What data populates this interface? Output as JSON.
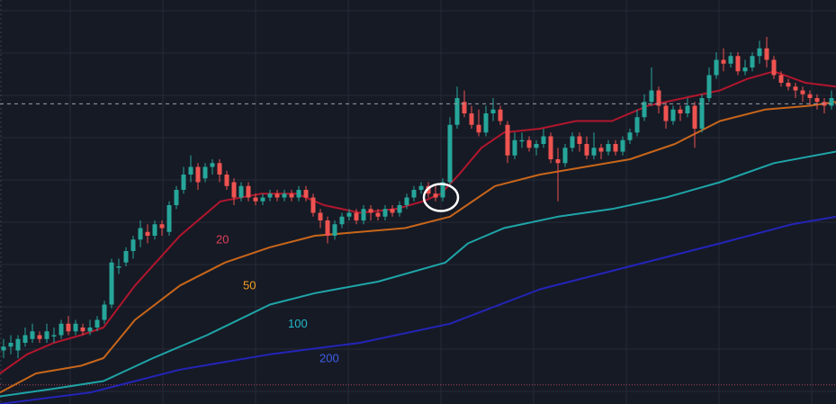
{
  "chart_data": {
    "type": "line",
    "title": "",
    "xlabel": "",
    "ylabel": "",
    "ylim": [
      0,
      100
    ],
    "grid": true,
    "reference_line_y": 78.5,
    "bottom_line_y": 5,
    "colors": {
      "background": "#161a25",
      "grid": "#252a36",
      "bull": "#26a69a",
      "bear": "#ef5350",
      "reference_line": "#9aa0aa",
      "bottom_line": "#b2475a",
      "annotation": "#ffffff"
    },
    "annotation": {
      "shape": "circle",
      "x": 490,
      "y": 54
    },
    "ma_series": [
      {
        "name": "20",
        "color": "#b2162d",
        "label_color": "#e0415a",
        "label_x": 240,
        "label_y": 42,
        "points": [
          [
            0,
            8
          ],
          [
            30,
            13
          ],
          [
            60,
            16
          ],
          [
            90,
            18
          ],
          [
            115,
            20
          ],
          [
            150,
            31
          ],
          [
            200,
            44
          ],
          [
            245,
            53
          ],
          [
            290,
            55
          ],
          [
            330,
            55
          ],
          [
            360,
            52
          ],
          [
            400,
            50
          ],
          [
            440,
            51
          ],
          [
            470,
            53
          ],
          [
            490,
            55
          ],
          [
            510,
            60
          ],
          [
            535,
            67
          ],
          [
            560,
            71
          ],
          [
            600,
            72
          ],
          [
            640,
            74
          ],
          [
            680,
            74
          ],
          [
            720,
            78
          ],
          [
            760,
            80
          ],
          [
            800,
            82
          ],
          [
            830,
            85
          ],
          [
            860,
            87
          ],
          [
            895,
            84
          ],
          [
            929,
            83
          ]
        ]
      },
      {
        "name": "50",
        "color": "#c8661a",
        "label_color": "#f4a020",
        "label_x": 270,
        "label_y": 30,
        "points": [
          [
            0,
            3
          ],
          [
            40,
            8
          ],
          [
            90,
            10
          ],
          [
            115,
            12
          ],
          [
            150,
            22
          ],
          [
            200,
            31
          ],
          [
            250,
            37
          ],
          [
            300,
            41
          ],
          [
            350,
            44
          ],
          [
            400,
            45
          ],
          [
            450,
            46
          ],
          [
            500,
            49
          ],
          [
            550,
            57
          ],
          [
            600,
            60
          ],
          [
            650,
            62
          ],
          [
            700,
            64
          ],
          [
            750,
            68
          ],
          [
            800,
            74
          ],
          [
            850,
            77
          ],
          [
            900,
            78
          ],
          [
            929,
            79
          ]
        ]
      },
      {
        "name": "100",
        "color": "#1ea5a8",
        "label_color": "#22b8c8",
        "label_x": 320,
        "label_y": 20,
        "points": [
          [
            0,
            2
          ],
          [
            60,
            4
          ],
          [
            115,
            6
          ],
          [
            170,
            12
          ],
          [
            230,
            18
          ],
          [
            300,
            26
          ],
          [
            350,
            29
          ],
          [
            420,
            32
          ],
          [
            495,
            37
          ],
          [
            520,
            42
          ],
          [
            560,
            46
          ],
          [
            620,
            49
          ],
          [
            680,
            51
          ],
          [
            740,
            54
          ],
          [
            800,
            58
          ],
          [
            860,
            63
          ],
          [
            929,
            66
          ]
        ]
      },
      {
        "name": "200",
        "color": "#2424b8",
        "label_color": "#3d5ee8",
        "label_x": 355,
        "label_y": 11,
        "points": [
          [
            0,
            0
          ],
          [
            100,
            3
          ],
          [
            200,
            9
          ],
          [
            300,
            13
          ],
          [
            400,
            16
          ],
          [
            500,
            21
          ],
          [
            600,
            30
          ],
          [
            700,
            36
          ],
          [
            800,
            42
          ],
          [
            880,
            47
          ],
          [
            929,
            49
          ]
        ]
      }
    ],
    "candles": [
      [
        4,
        14,
        15,
        12,
        17
      ],
      [
        12,
        15,
        16,
        13,
        18
      ],
      [
        20,
        14,
        17,
        12,
        18
      ],
      [
        28,
        16,
        18,
        15,
        20
      ],
      [
        36,
        17,
        19,
        16,
        21
      ],
      [
        44,
        18,
        17,
        16,
        19
      ],
      [
        52,
        17,
        19,
        16,
        21
      ],
      [
        60,
        18,
        18,
        16,
        20
      ],
      [
        68,
        18,
        21,
        17,
        22
      ],
      [
        76,
        21,
        19,
        18,
        23
      ],
      [
        84,
        19,
        21,
        18,
        22
      ],
      [
        92,
        20,
        19,
        18,
        21
      ],
      [
        100,
        19,
        20,
        18,
        22
      ],
      [
        108,
        20,
        22,
        19,
        23
      ],
      [
        116,
        22,
        26,
        21,
        27
      ],
      [
        124,
        26,
        37,
        25,
        38
      ],
      [
        132,
        36,
        36,
        34,
        38
      ],
      [
        140,
        37,
        40,
        36,
        41
      ],
      [
        148,
        40,
        43,
        38,
        44
      ],
      [
        156,
        43,
        46,
        41,
        48
      ],
      [
        164,
        45,
        44,
        42,
        47
      ],
      [
        172,
        44,
        47,
        43,
        48
      ],
      [
        180,
        47,
        46,
        44,
        48
      ],
      [
        188,
        45,
        52,
        44,
        53
      ],
      [
        196,
        52,
        56,
        51,
        57
      ],
      [
        204,
        56,
        60,
        55,
        62
      ],
      [
        212,
        60,
        62,
        58,
        65
      ],
      [
        220,
        62,
        58,
        56,
        63
      ],
      [
        228,
        59,
        62,
        58,
        63
      ],
      [
        236,
        62,
        63,
        60,
        64
      ],
      [
        244,
        63,
        60,
        58,
        64
      ],
      [
        252,
        60,
        57,
        56,
        61
      ],
      [
        260,
        58,
        54,
        52,
        59
      ],
      [
        268,
        54,
        57,
        53,
        58
      ],
      [
        276,
        57,
        54,
        53,
        58
      ],
      [
        284,
        54,
        53,
        52,
        55
      ],
      [
        292,
        53,
        54,
        52,
        55
      ],
      [
        300,
        54,
        55,
        53,
        56
      ],
      [
        308,
        55,
        54,
        53,
        56
      ],
      [
        316,
        54,
        55,
        53,
        56
      ],
      [
        324,
        55,
        54,
        53,
        56
      ],
      [
        332,
        54,
        56,
        53,
        57
      ],
      [
        340,
        56,
        54,
        53,
        57
      ],
      [
        348,
        54,
        50,
        49,
        55
      ],
      [
        356,
        50,
        48,
        46,
        51
      ],
      [
        364,
        48,
        44,
        42,
        49
      ],
      [
        372,
        44,
        47,
        43,
        48
      ],
      [
        380,
        47,
        49,
        46,
        50
      ],
      [
        388,
        49,
        50,
        48,
        51
      ],
      [
        396,
        50,
        48,
        47,
        51
      ],
      [
        404,
        48,
        51,
        47,
        52
      ],
      [
        412,
        51,
        50,
        48,
        52
      ],
      [
        420,
        50,
        49,
        48,
        51
      ],
      [
        428,
        49,
        51,
        48,
        52
      ],
      [
        436,
        51,
        50,
        49,
        52
      ],
      [
        444,
        50,
        52,
        49,
        53
      ],
      [
        452,
        52,
        54,
        51,
        55
      ],
      [
        460,
        54,
        56,
        53,
        57
      ],
      [
        468,
        56,
        57,
        55,
        58
      ],
      [
        476,
        57,
        55,
        54,
        58
      ],
      [
        484,
        55,
        54,
        53,
        57
      ],
      [
        492,
        54,
        58,
        53,
        59
      ],
      [
        500,
        58,
        73,
        57,
        75
      ],
      [
        508,
        73,
        80,
        72,
        83
      ],
      [
        516,
        79,
        76,
        75,
        82
      ],
      [
        524,
        76,
        73,
        72,
        78
      ],
      [
        532,
        73,
        71,
        70,
        77
      ],
      [
        540,
        71,
        76,
        70,
        78
      ],
      [
        548,
        76,
        77,
        74,
        80
      ],
      [
        556,
        77,
        74,
        73,
        78
      ],
      [
        564,
        73,
        65,
        63,
        74
      ],
      [
        572,
        65,
        69,
        64,
        71
      ],
      [
        580,
        69,
        69,
        67,
        71
      ],
      [
        588,
        69,
        67,
        66,
        70
      ],
      [
        596,
        67,
        68,
        65,
        69
      ],
      [
        604,
        68,
        70,
        67,
        72
      ],
      [
        612,
        70,
        64,
        63,
        71
      ],
      [
        620,
        64,
        63,
        53,
        67
      ],
      [
        628,
        63,
        67,
        62,
        68
      ],
      [
        636,
        67,
        70,
        66,
        71
      ],
      [
        644,
        70,
        68,
        66,
        71
      ],
      [
        652,
        68,
        65,
        64,
        70
      ],
      [
        660,
        65,
        67,
        64,
        71
      ],
      [
        668,
        67,
        66,
        64,
        68
      ],
      [
        676,
        66,
        68,
        65,
        69
      ],
      [
        684,
        68,
        66,
        65,
        69
      ],
      [
        692,
        66,
        69,
        65,
        70
      ],
      [
        700,
        69,
        71,
        68,
        72
      ],
      [
        708,
        71,
        75,
        70,
        77
      ],
      [
        716,
        75,
        79,
        74,
        81
      ],
      [
        724,
        79,
        82,
        78,
        88
      ],
      [
        732,
        82,
        78,
        76,
        83
      ],
      [
        740,
        78,
        74,
        72,
        79
      ],
      [
        748,
        74,
        77,
        73,
        78
      ],
      [
        756,
        77,
        76,
        74,
        78
      ],
      [
        764,
        76,
        78,
        75,
        80
      ],
      [
        772,
        78,
        72,
        67,
        79
      ],
      [
        780,
        72,
        80,
        71,
        81
      ],
      [
        788,
        80,
        86,
        79,
        88
      ],
      [
        796,
        86,
        90,
        85,
        92
      ],
      [
        804,
        90,
        89,
        87,
        93
      ],
      [
        812,
        89,
        91,
        88,
        92
      ],
      [
        820,
        91,
        87,
        86,
        92
      ],
      [
        828,
        87,
        88,
        86,
        90
      ],
      [
        836,
        88,
        91,
        87,
        92
      ],
      [
        844,
        91,
        93,
        89,
        95
      ],
      [
        852,
        93,
        90,
        88,
        96
      ],
      [
        860,
        90,
        86,
        85,
        91
      ],
      [
        868,
        86,
        84,
        83,
        87
      ],
      [
        876,
        84,
        83,
        82,
        85
      ],
      [
        884,
        83,
        82,
        80,
        84
      ],
      [
        892,
        82,
        81,
        79,
        83
      ],
      [
        900,
        81,
        80,
        78,
        82
      ],
      [
        908,
        80,
        79,
        77,
        81
      ],
      [
        916,
        79,
        78,
        76,
        80
      ],
      [
        924,
        78,
        80,
        77,
        82
      ]
    ]
  }
}
